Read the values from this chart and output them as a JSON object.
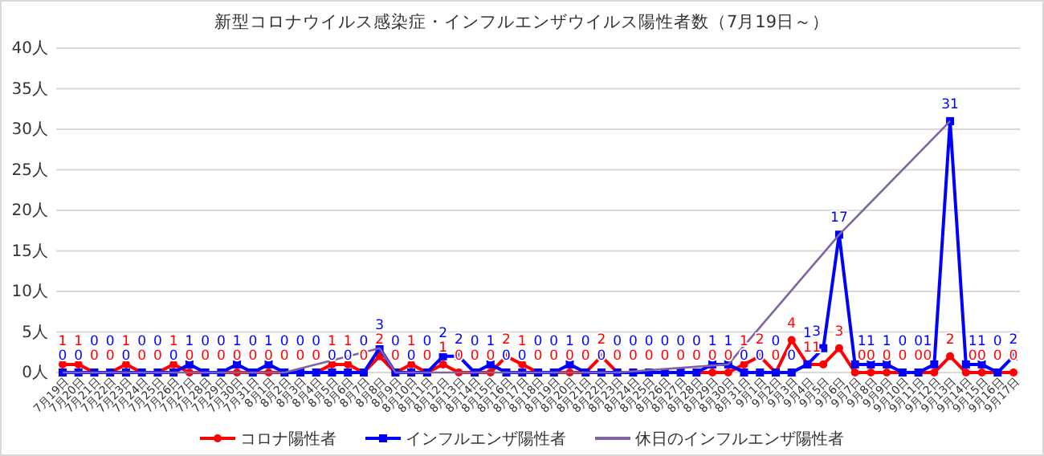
{
  "chart_data": {
    "type": "line",
    "title": "新型コロナウイルス感染症・インフルエンザウイルス陽性者数（7月19日～）",
    "categories": [
      "7月19日",
      "7月20日",
      "7月21日",
      "7月22日",
      "7月23日",
      "7月24日",
      "7月25日",
      "7月26日",
      "7月27日",
      "7月28日",
      "7月29日",
      "7月30日",
      "7月31日",
      "8月1日",
      "8月2日",
      "8月3日",
      "8月4日",
      "8月5日",
      "8月6日",
      "8月7日",
      "8月8日",
      "8月9日",
      "8月10日",
      "8月11日",
      "8月12日",
      "8月13日",
      "8月14日",
      "8月15日",
      "8月16日",
      "8月17日",
      "8月18日",
      "8月19日",
      "8月20日",
      "8月21日",
      "8月22日",
      "8月23日",
      "8月24日",
      "8月25日",
      "8月26日",
      "8月27日",
      "8月28日",
      "8月29日",
      "8月30日",
      "8月31日",
      "9月1日",
      "9月2日",
      "9月3日",
      "9月4日",
      "9月5日",
      "9月6日",
      "9月7日",
      "9月8日",
      "9月9日",
      "9月10日",
      "9月11日",
      "9月12日",
      "9月13日",
      "9月14日",
      "9月15日",
      "9月16日",
      "9月17日"
    ],
    "series": [
      {
        "name": "コロナ陽性者",
        "color": "#ff0000",
        "marker": "circle",
        "data_labels": true,
        "values": [
          1,
          1,
          0,
          0,
          1,
          0,
          0,
          1,
          0,
          0,
          0,
          0,
          0,
          0,
          0,
          0,
          0,
          1,
          1,
          0,
          2,
          0,
          1,
          0,
          1,
          0,
          0,
          0,
          2,
          1,
          0,
          0,
          0,
          0,
          2,
          0,
          0,
          0,
          0,
          0,
          0,
          0,
          0,
          1,
          2,
          0,
          4,
          1,
          1,
          3,
          0,
          0,
          0,
          0,
          0,
          0,
          2,
          0,
          0,
          0,
          0
        ]
      },
      {
        "name": "インフルエンザ陽性者",
        "color": "#0000ff",
        "marker": "square",
        "data_labels": true,
        "values": [
          0,
          0,
          0,
          0,
          0,
          0,
          0,
          0,
          1,
          0,
          0,
          1,
          0,
          1,
          0,
          0,
          0,
          0,
          0,
          0,
          3,
          0,
          0,
          0,
          2,
          2,
          0,
          1,
          0,
          0,
          0,
          0,
          1,
          0,
          0,
          0,
          0,
          0,
          0,
          0,
          0,
          1,
          1,
          0,
          0,
          0,
          0,
          1,
          3,
          17,
          1,
          1,
          1,
          0,
          0,
          1,
          31,
          1,
          1,
          0,
          2
        ]
      },
      {
        "name": "休日のインフルエンザ陽性者",
        "color": "#8064a2",
        "marker": "none",
        "x": [
          "7月19日",
          "7月23日",
          "7月24日",
          "7月26日",
          "8月2日",
          "8月8日",
          "8月9日",
          "8月10日",
          "8月16日",
          "8月23日",
          "8月30日",
          "9月6日",
          "9月13日"
        ],
        "values": [
          0,
          0,
          0,
          0,
          0,
          3,
          0,
          0,
          0,
          0,
          1,
          17,
          31
        ]
      }
    ],
    "ylim": [
      0,
      40
    ],
    "yticks": [
      {
        "value": 0,
        "label": "0人"
      },
      {
        "value": 5,
        "label": "5人"
      },
      {
        "value": 10,
        "label": "10人"
      },
      {
        "value": 15,
        "label": "15人"
      },
      {
        "value": 20,
        "label": "20人"
      },
      {
        "value": 25,
        "label": "25人"
      },
      {
        "value": 30,
        "label": "30人"
      },
      {
        "value": 35,
        "label": "35人"
      },
      {
        "value": 40,
        "label": "40人"
      }
    ],
    "grid": "y",
    "legend": "bottom"
  }
}
